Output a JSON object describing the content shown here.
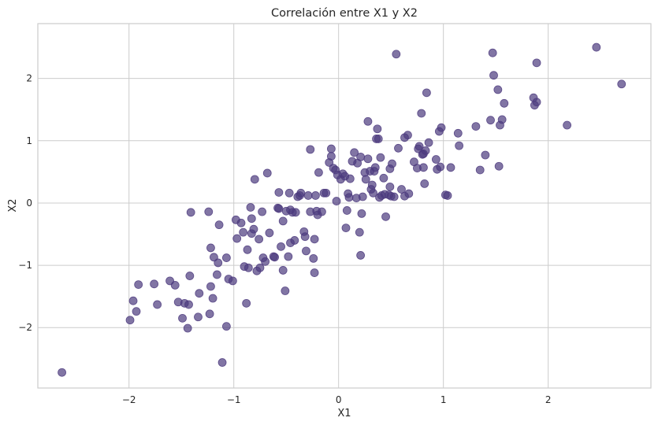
{
  "chart_data": {
    "type": "scatter",
    "title": "Correlación entre X1 y X2",
    "xlabel": "X1",
    "ylabel": "X2",
    "xlim": [
      -2.87,
      2.98
    ],
    "ylim": [
      -2.97,
      2.88
    ],
    "xticks": [
      -2,
      -1,
      0,
      1,
      2
    ],
    "yticks": [
      -2,
      -1,
      0,
      1,
      2
    ],
    "tick_labels_x": [
      "−2",
      "−1",
      "0",
      "1",
      "2"
    ],
    "tick_labels_y": [
      "−2",
      "−1",
      "0",
      "1",
      "2"
    ],
    "grid": true,
    "colors": {
      "point": "#4c3a7e",
      "grid": "#cccccc",
      "text": "#262626"
    },
    "point_alpha": 0.7,
    "series": [
      {
        "points": [
          [
            -2.64,
            -2.72
          ],
          [
            -1.99,
            -1.88
          ],
          [
            -1.96,
            -1.57
          ],
          [
            -1.93,
            -1.74
          ],
          [
            -1.91,
            -1.31
          ],
          [
            -1.76,
            -1.3
          ],
          [
            -1.73,
            -1.63
          ],
          [
            -1.61,
            -1.25
          ],
          [
            -1.56,
            -1.32
          ],
          [
            -1.53,
            -1.59
          ],
          [
            -1.49,
            -1.85
          ],
          [
            -1.47,
            -1.61
          ],
          [
            -1.44,
            -2.01
          ],
          [
            -1.43,
            -1.63
          ],
          [
            -1.42,
            -1.17
          ],
          [
            -1.41,
            -0.15
          ],
          [
            -1.34,
            -1.83
          ],
          [
            -1.33,
            -1.45
          ],
          [
            -1.24,
            -0.14
          ],
          [
            -1.23,
            -1.78
          ],
          [
            -1.22,
            -1.34
          ],
          [
            -1.22,
            -0.72
          ],
          [
            -1.2,
            -1.53
          ],
          [
            -1.19,
            -0.87
          ],
          [
            -1.16,
            -1.15
          ],
          [
            -1.15,
            -0.96
          ],
          [
            -1.14,
            -0.35
          ],
          [
            -1.11,
            -2.56
          ],
          [
            -1.07,
            -1.98
          ],
          [
            -1.07,
            -0.88
          ],
          [
            -1.05,
            -1.22
          ],
          [
            -1.01,
            -1.25
          ],
          [
            -0.98,
            -0.27
          ],
          [
            -0.97,
            -0.57
          ],
          [
            -0.93,
            -0.32
          ],
          [
            -0.91,
            -0.47
          ],
          [
            -0.9,
            -1.02
          ],
          [
            -0.88,
            -1.61
          ],
          [
            -0.87,
            -0.75
          ],
          [
            -0.86,
            -1.04
          ],
          [
            -0.84,
            -0.07
          ],
          [
            -0.83,
            -0.25
          ],
          [
            -0.83,
            -0.49
          ],
          [
            -0.81,
            -0.42
          ],
          [
            -0.8,
            0.38
          ],
          [
            -0.78,
            -1.09
          ],
          [
            -0.76,
            -0.58
          ],
          [
            -0.75,
            -1.04
          ],
          [
            -0.73,
            -0.14
          ],
          [
            -0.72,
            -0.88
          ],
          [
            -0.7,
            -0.94
          ],
          [
            -0.68,
            0.48
          ],
          [
            -0.66,
            -0.48
          ],
          [
            -0.62,
            -0.86
          ],
          [
            -0.61,
            -0.87
          ],
          [
            -0.58,
            -0.08
          ],
          [
            -0.57,
            0.17
          ],
          [
            -0.57,
            -0.09
          ],
          [
            -0.55,
            -0.7
          ],
          [
            -0.53,
            -0.29
          ],
          [
            -0.53,
            -1.08
          ],
          [
            -0.51,
            -1.41
          ],
          [
            -0.5,
            -0.13
          ],
          [
            -0.48,
            -0.86
          ],
          [
            -0.47,
            0.16
          ],
          [
            -0.46,
            -0.64
          ],
          [
            -0.46,
            -0.11
          ],
          [
            -0.44,
            -0.15
          ],
          [
            -0.42,
            -0.6
          ],
          [
            -0.41,
            -0.15
          ],
          [
            -0.39,
            0.1
          ],
          [
            -0.37,
            0.12
          ],
          [
            -0.36,
            0.16
          ],
          [
            -0.33,
            -0.46
          ],
          [
            -0.32,
            -0.54
          ],
          [
            -0.31,
            -0.77
          ],
          [
            -0.29,
            0.12
          ],
          [
            -0.27,
            0.86
          ],
          [
            -0.27,
            -0.14
          ],
          [
            -0.24,
            -0.89
          ],
          [
            -0.23,
            -1.12
          ],
          [
            -0.23,
            -0.58
          ],
          [
            -0.22,
            0.12
          ],
          [
            -0.21,
            -0.13
          ],
          [
            -0.2,
            -0.19
          ],
          [
            -0.19,
            0.49
          ],
          [
            -0.16,
            -0.14
          ],
          [
            -0.14,
            0.16
          ],
          [
            -0.12,
            0.16
          ],
          [
            -0.09,
            0.65
          ],
          [
            -0.07,
            0.75
          ],
          [
            -0.07,
            0.87
          ],
          [
            -0.05,
            0.56
          ],
          [
            -0.03,
            0.53
          ],
          [
            -0.02,
            0.03
          ],
          [
            -0.01,
            0.45
          ],
          [
            0.02,
            0.38
          ],
          [
            0.04,
            0.47
          ],
          [
            0.06,
            0.43
          ],
          [
            0.07,
            -0.4
          ],
          [
            0.08,
            -0.12
          ],
          [
            0.09,
            0.15
          ],
          [
            0.1,
            0.09
          ],
          [
            0.11,
            0.39
          ],
          [
            0.13,
            0.67
          ],
          [
            0.15,
            0.81
          ],
          [
            0.17,
            0.08
          ],
          [
            0.18,
            0.64
          ],
          [
            0.2,
            -0.47
          ],
          [
            0.21,
            0.74
          ],
          [
            0.21,
            -0.84
          ],
          [
            0.22,
            -0.17
          ],
          [
            0.23,
            0.1
          ],
          [
            0.25,
            0.49
          ],
          [
            0.26,
            0.38
          ],
          [
            0.28,
            0.71
          ],
          [
            0.28,
            1.31
          ],
          [
            0.3,
            0.51
          ],
          [
            0.31,
            0.22
          ],
          [
            0.32,
            0.29
          ],
          [
            0.33,
            0.16
          ],
          [
            0.34,
            0.51
          ],
          [
            0.35,
            0.57
          ],
          [
            0.36,
            1.03
          ],
          [
            0.37,
            1.19
          ],
          [
            0.38,
            1.03
          ],
          [
            0.39,
            0.09
          ],
          [
            0.4,
            0.73
          ],
          [
            0.41,
            0.12
          ],
          [
            0.43,
            0.4
          ],
          [
            0.44,
            0.14
          ],
          [
            0.45,
            -0.22
          ],
          [
            0.48,
            0.13
          ],
          [
            0.49,
            0.26
          ],
          [
            0.49,
            0.55
          ],
          [
            0.5,
            0.11
          ],
          [
            0.51,
            0.63
          ],
          [
            0.53,
            0.1
          ],
          [
            0.55,
            2.39
          ],
          [
            0.57,
            0.88
          ],
          [
            0.6,
            0.22
          ],
          [
            0.63,
            0.11
          ],
          [
            0.63,
            1.05
          ],
          [
            0.66,
            1.09
          ],
          [
            0.67,
            0.15
          ],
          [
            0.72,
            0.66
          ],
          [
            0.75,
            0.56
          ],
          [
            0.76,
            0.87
          ],
          [
            0.77,
            0.91
          ],
          [
            0.79,
            1.44
          ],
          [
            0.8,
            0.78
          ],
          [
            0.81,
            0.79
          ],
          [
            0.81,
            0.57
          ],
          [
            0.82,
            0.31
          ],
          [
            0.83,
            0.84
          ],
          [
            0.84,
            1.77
          ],
          [
            0.86,
            0.97
          ],
          [
            0.93,
            0.7
          ],
          [
            0.94,
            0.54
          ],
          [
            0.96,
            1.15
          ],
          [
            0.97,
            0.58
          ],
          [
            0.98,
            1.21
          ],
          [
            1.02,
            0.13
          ],
          [
            1.04,
            0.12
          ],
          [
            1.07,
            0.57
          ],
          [
            1.14,
            1.12
          ],
          [
            1.15,
            0.92
          ],
          [
            1.31,
            1.23
          ],
          [
            1.35,
            0.53
          ],
          [
            1.4,
            0.77
          ],
          [
            1.45,
            1.33
          ],
          [
            1.47,
            2.41
          ],
          [
            1.48,
            2.05
          ],
          [
            1.52,
            1.82
          ],
          [
            1.53,
            0.59
          ],
          [
            1.54,
            1.25
          ],
          [
            1.56,
            1.34
          ],
          [
            1.58,
            1.6
          ],
          [
            1.86,
            1.69
          ],
          [
            1.87,
            1.57
          ],
          [
            1.89,
            2.25
          ],
          [
            1.89,
            1.62
          ],
          [
            2.18,
            1.25
          ],
          [
            2.46,
            2.5
          ],
          [
            2.7,
            1.91
          ]
        ]
      }
    ]
  }
}
